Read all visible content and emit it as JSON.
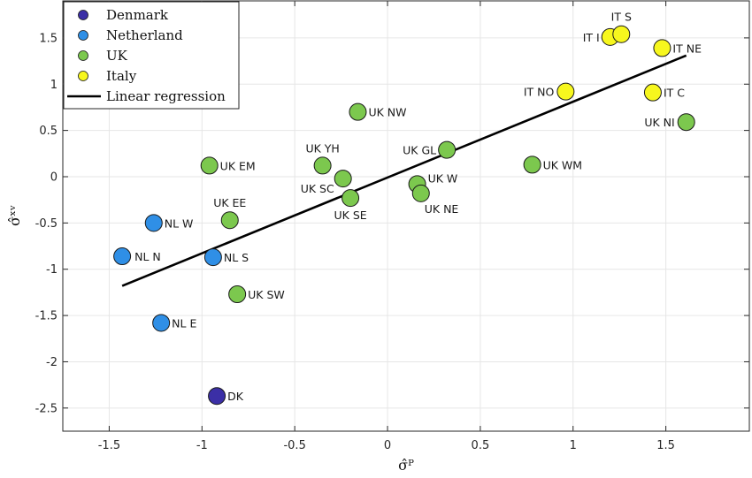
{
  "chart_data": {
    "type": "scatter",
    "xlabel": "σ̂ᴾ",
    "ylabel": "σ̂ˣᵛ",
    "xlim": [
      -1.75,
      1.95
    ],
    "ylim": [
      -2.75,
      1.9
    ],
    "xticks": [
      -1.5,
      -1,
      -0.5,
      0,
      0.5,
      1,
      1.5
    ],
    "xtick_labels": [
      "-1.5",
      "-1",
      "-0.5",
      "0",
      "0.5",
      "1",
      "1.5"
    ],
    "yticks": [
      -2.5,
      -2,
      -1.5,
      -1,
      -0.5,
      0,
      0.5,
      1,
      1.5
    ],
    "ytick_labels": [
      "-2.5",
      "-2",
      "-1.5",
      "-1",
      "-0.5",
      "0",
      "0.5",
      "1",
      "1.5"
    ],
    "grid": true,
    "legend_position": "top-left",
    "series": [
      {
        "name": "Denmark",
        "color": "#3b2fa6",
        "points": [
          {
            "label": "DK",
            "x": -0.92,
            "y": -2.37
          }
        ]
      },
      {
        "name": "Netherland",
        "color": "#2f8fe6",
        "points": [
          {
            "label": "NL W",
            "x": -1.26,
            "y": -0.5
          },
          {
            "label": "NL N",
            "x": -1.43,
            "y": -0.86
          },
          {
            "label": "NL S",
            "x": -0.94,
            "y": -0.87
          },
          {
            "label": "NL E",
            "x": -1.22,
            "y": -1.58
          }
        ]
      },
      {
        "name": "UK",
        "color": "#7cc84e",
        "points": [
          {
            "label": "UK EM",
            "x": -0.96,
            "y": 0.12
          },
          {
            "label": "UK EE",
            "x": -0.85,
            "y": -0.47
          },
          {
            "label": "UK SW",
            "x": -0.81,
            "y": -1.27
          },
          {
            "label": "UK YH",
            "x": -0.35,
            "y": 0.12
          },
          {
            "label": "UK SC",
            "x": -0.24,
            "y": -0.02
          },
          {
            "label": "UK SE",
            "x": -0.2,
            "y": -0.23
          },
          {
            "label": "UK NW",
            "x": -0.16,
            "y": 0.7
          },
          {
            "label": "UK W",
            "x": 0.16,
            "y": -0.08
          },
          {
            "label": "UK NE",
            "x": 0.18,
            "y": -0.18
          },
          {
            "label": "UK GL",
            "x": 0.32,
            "y": 0.29
          },
          {
            "label": "UK WM",
            "x": 0.78,
            "y": 0.13
          },
          {
            "label": "UK NI",
            "x": 1.61,
            "y": 0.59
          }
        ]
      },
      {
        "name": "Italy",
        "color": "#f7f71e",
        "points": [
          {
            "label": "IT I",
            "x": 1.2,
            "y": 1.51
          },
          {
            "label": "IT S",
            "x": 1.26,
            "y": 1.54
          },
          {
            "label": "IT NE",
            "x": 1.48,
            "y": 1.39
          },
          {
            "label": "IT NO",
            "x": 0.96,
            "y": 0.92
          },
          {
            "label": "IT C",
            "x": 1.43,
            "y": 0.91
          }
        ]
      }
    ],
    "regression": {
      "name": "Linear regression",
      "color": "#000000",
      "x": [
        -1.43,
        1.61
      ],
      "y": [
        -1.18,
        1.31
      ]
    }
  }
}
